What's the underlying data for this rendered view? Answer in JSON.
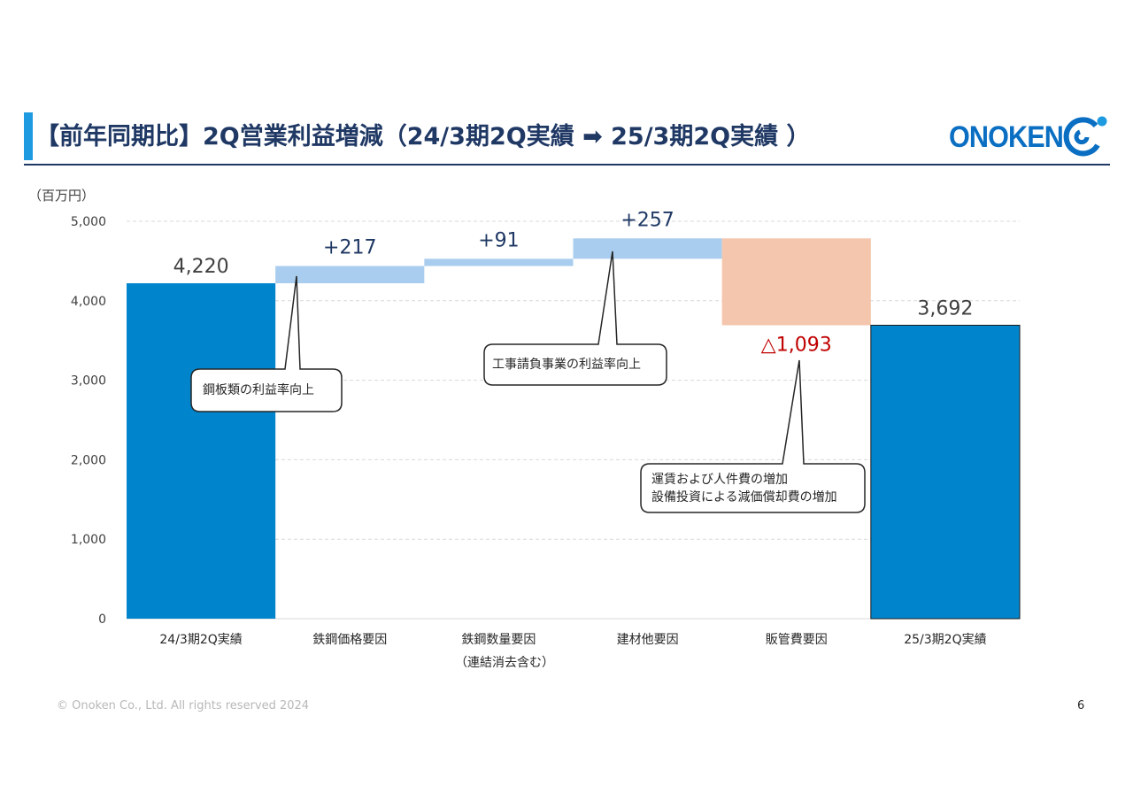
{
  "header": {
    "title": "【前年同期比】2Q営業利益増減（24/3期2Q実績 ➡ 25/3期2Q実績 ）",
    "logo_text": "ONOKEN"
  },
  "unit_label": "（百万円）",
  "chart_data": {
    "type": "bar",
    "subtype": "waterfall",
    "categories": [
      "24/3期2Q実績",
      "鉄鋼価格要因",
      "鉄鋼数量要因",
      "建材他要因",
      "販管費要因",
      "25/3期2Q実績"
    ],
    "category_sublabels": [
      "",
      "",
      "（連結消去含む）",
      "",
      "",
      ""
    ],
    "bars": [
      {
        "kind": "total",
        "start": 0,
        "end": 4220,
        "label": "4,220",
        "color": "#0085cc"
      },
      {
        "kind": "increase",
        "start": 4220,
        "end": 4437,
        "label": "+217",
        "color": "#a9cdee"
      },
      {
        "kind": "increase",
        "start": 4437,
        "end": 4528,
        "label": "+91",
        "color": "#a9cdee"
      },
      {
        "kind": "increase",
        "start": 4528,
        "end": 4785,
        "label": "+257",
        "color": "#a9cdee"
      },
      {
        "kind": "decrease",
        "start": 4785,
        "end": 3692,
        "label": "△1,093",
        "color": "#f4c6ad"
      },
      {
        "kind": "total",
        "start": 0,
        "end": 3692,
        "label": "3,692",
        "color": "#0085cc"
      }
    ],
    "yticks": [
      "0",
      "1,000",
      "2,000",
      "3,000",
      "4,000",
      "5,000"
    ],
    "ylim": [
      0,
      5000
    ],
    "grid": true,
    "colors": {
      "total": "#0085cc",
      "increase": "#a9cdee",
      "decrease": "#f4c6ad",
      "negative_label": "#c00000",
      "positive_label": "#1f3864",
      "total_label": "#404040"
    }
  },
  "callouts": [
    {
      "text": "鋼板類の利益率向上"
    },
    {
      "text": "工事請負事業の利益率向上"
    },
    {
      "line1": "運賃および人件費の増加",
      "line2": "設備投資による減価償却費の増加"
    }
  ],
  "footer": {
    "copyright": "© Onoken Co., Ltd. All rights reserved 2024",
    "page_number": "6"
  }
}
